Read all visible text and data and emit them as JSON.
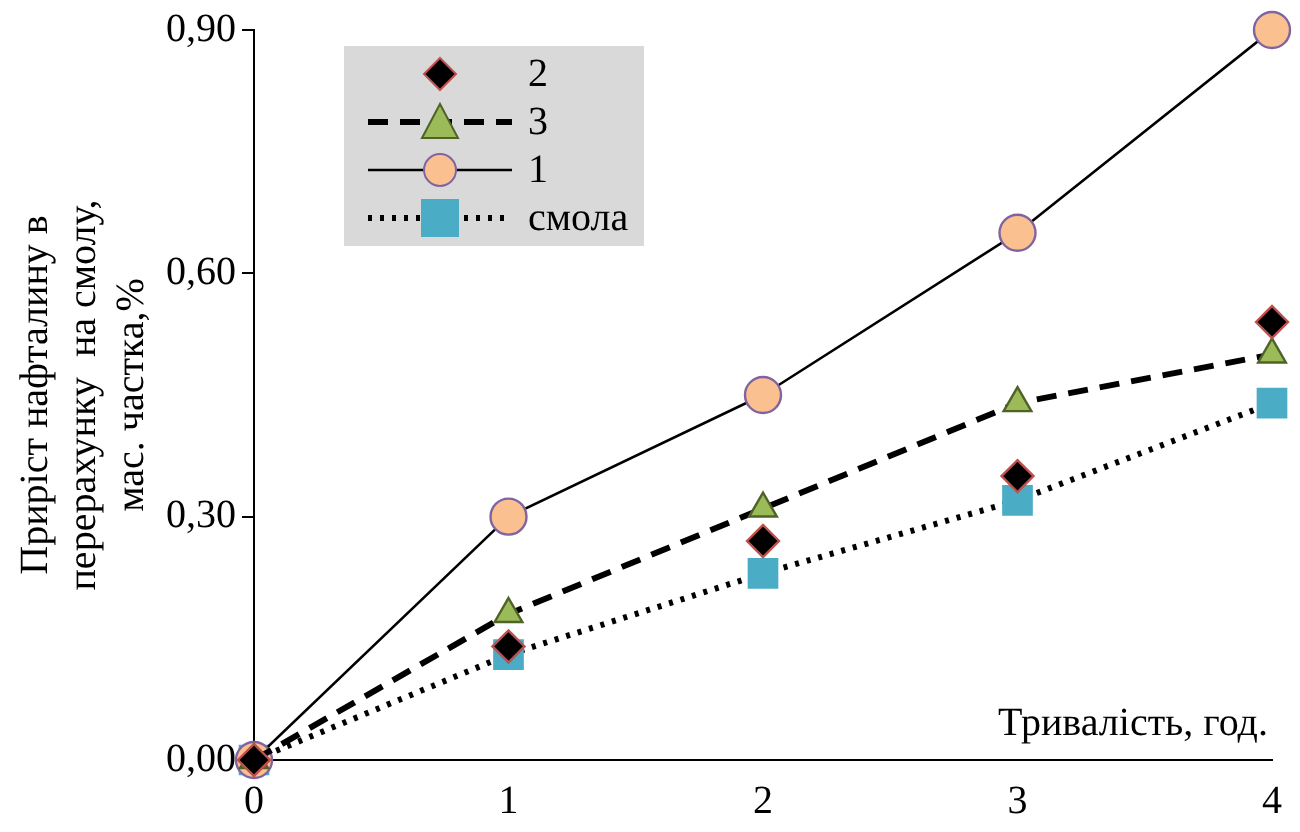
{
  "chart_data": {
    "type": "line",
    "xlabel": "Тривалість, год.",
    "ylabel": "Приріст нафталину в\nперерахунку  на смолу,\nмас. частка,%",
    "x": [
      0,
      1,
      2,
      3,
      4
    ],
    "series": [
      {
        "name": "2",
        "type": "scatter",
        "color": "#000000",
        "colors": [
          "#000000",
          "#000000",
          "#000000",
          "#000000",
          "#000000"
        ],
        "values": [
          0,
          0.14,
          0.27,
          0.35,
          0.54
        ],
        "marker": "diamond"
      },
      {
        "name": "3",
        "color": "#000000",
        "colors": [
          "#9bbb59",
          "#9bbb59",
          "#9bbb59",
          "#9bbb59",
          "#9bbb59"
        ],
        "values": [
          0,
          0.18,
          0.31,
          0.44,
          0.5
        ],
        "marker": "triangle",
        "line_style": "dashed"
      },
      {
        "name": "1",
        "color": "#000000",
        "colors": [
          "#fac090",
          "#fac090",
          "#fac090",
          "#fac090",
          "#fac090"
        ],
        "values": [
          0,
          0.3,
          0.45,
          0.65,
          0.9
        ],
        "marker": "circle",
        "line_style": "solid"
      },
      {
        "name": "смола",
        "color": "#000000",
        "colors": [
          "#4bacc6",
          "#4bacc6",
          "#4bacc6",
          "#4bacc6",
          "#4bacc6"
        ],
        "values": [
          0,
          0.13,
          0.23,
          0.32,
          0.44
        ],
        "marker": "square",
        "line_style": "dotted"
      }
    ],
    "xlim": [
      0,
      4
    ],
    "xticks": [
      0,
      1,
      2,
      3,
      4
    ],
    "ylim": [
      0,
      0.9
    ],
    "yticks": [
      {
        "value": 0,
        "label": "0,00"
      },
      {
        "value": 0.3,
        "label": "0,30"
      },
      {
        "value": 0.6,
        "label": "0,60"
      },
      {
        "value": 0.9,
        "label": "0,90"
      }
    ],
    "grid": false,
    "legend": "top left"
  }
}
